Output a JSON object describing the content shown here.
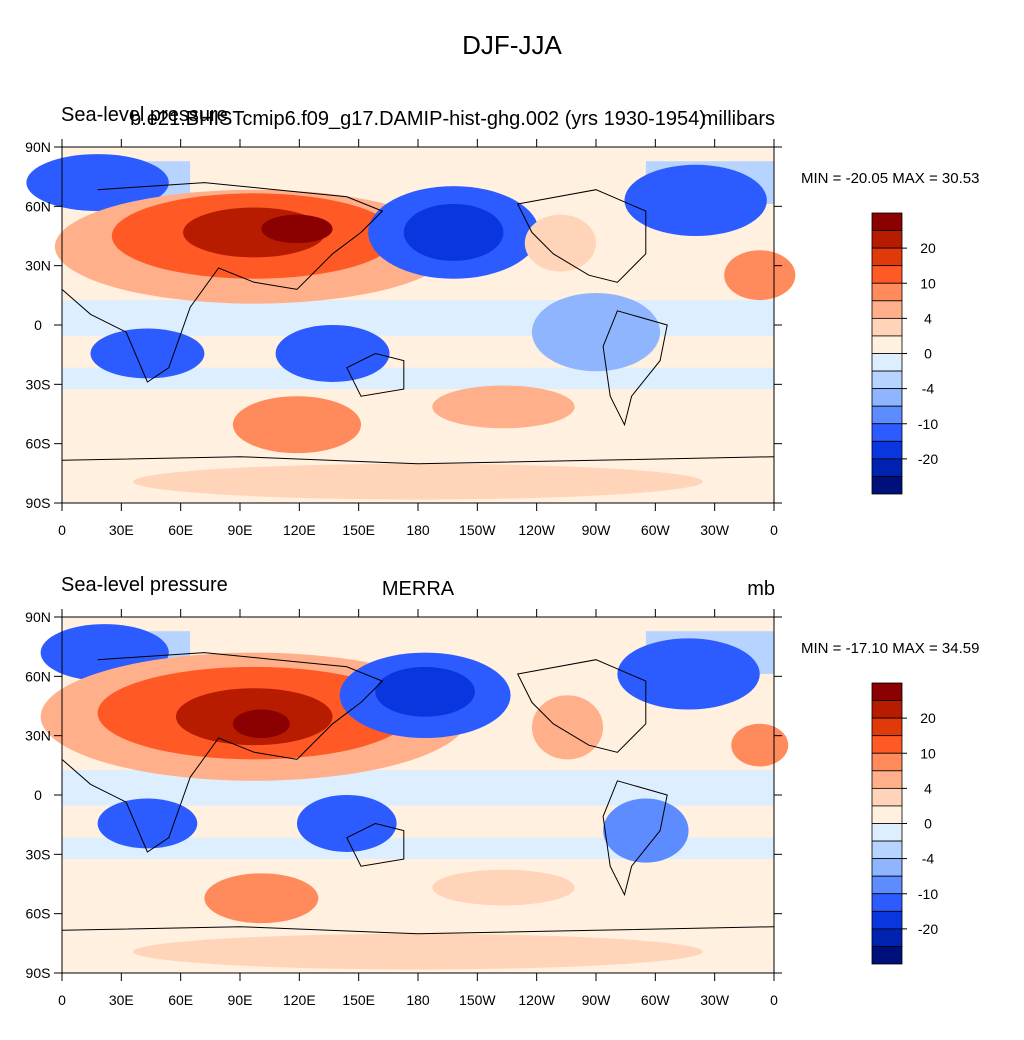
{
  "figure": {
    "title": "DJF-JJA"
  },
  "panels": [
    {
      "left_title": "Sea-level pressure",
      "center_title": "b.e21.BHISTcmip6.f09_g17.DAMIP-hist-ghg.002 (yrs 1930-1954)",
      "units": "millibars",
      "min_max": "MIN = -20.05 MAX =  30.53"
    },
    {
      "left_title": "Sea-level pressure",
      "center_title": "MERRA",
      "units": "mb",
      "min_max": "MIN = -17.10 MAX =  34.59"
    }
  ],
  "axes": {
    "lon_labels": [
      "0",
      "30E",
      "60E",
      "90E",
      "120E",
      "150E",
      "180",
      "150W",
      "120W",
      "90W",
      "60W",
      "30W",
      "0"
    ],
    "lat_labels": [
      "90N",
      "60N",
      "30N",
      "0",
      "30S",
      "60S",
      "90S"
    ]
  },
  "colorbar": {
    "labels": [
      "20",
      "10",
      "4",
      "0",
      "-4",
      "-10",
      "-20"
    ],
    "colors": [
      "#8b0000",
      "#b71c00",
      "#e03a0a",
      "#ff5a26",
      "#ff8a5c",
      "#ffb08a",
      "#ffd4b8",
      "#fff0e0",
      "#ddeeff",
      "#b7d3ff",
      "#8fb5ff",
      "#5c8cff",
      "#2c5cff",
      "#0a36e0",
      "#0022b0",
      "#00107a"
    ]
  },
  "chart_data": {
    "type": "heatmap",
    "title": "DJF-JJA",
    "xlabel": "",
    "ylabel": "",
    "xlim": [
      0,
      360
    ],
    "ylim": [
      -90,
      90
    ],
    "contour_levels": [
      -20,
      -15,
      -10,
      -8,
      -6,
      -4,
      -2,
      0,
      2,
      4,
      6,
      8,
      10,
      15,
      20
    ],
    "grid": false,
    "legend": "right colorbar",
    "panels": [
      {
        "name": "b.e21.BHISTcmip6.f09_g17.DAMIP-hist-ghg.002 (yrs 1930-1954)",
        "min": -20.05,
        "max": 30.53
      },
      {
        "name": "MERRA",
        "min": -17.1,
        "max": 34.59
      }
    ]
  }
}
